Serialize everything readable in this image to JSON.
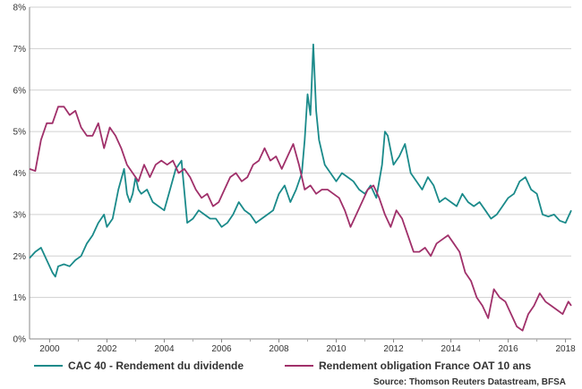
{
  "chart_data": {
    "type": "line",
    "x_range": [
      1999.3,
      2018.2
    ],
    "ylim": [
      0,
      8
    ],
    "y_ticks": [
      0,
      1,
      2,
      3,
      4,
      5,
      6,
      7,
      8
    ],
    "y_tick_labels": [
      "0%",
      "1%",
      "2%",
      "3%",
      "4%",
      "5%",
      "6%",
      "7%",
      "8%"
    ],
    "x_ticks": [
      2000,
      2002,
      2004,
      2006,
      2008,
      2010,
      2012,
      2014,
      2016,
      2018
    ],
    "x_tick_labels": [
      "2000",
      "2002",
      "2004",
      "2006",
      "2008",
      "2010",
      "2012",
      "2014",
      "2016",
      "2018"
    ],
    "grid": true,
    "legend_position": "bottom",
    "series": [
      {
        "name": "CAC 40 - Rendement du dividende",
        "color": "#1a8a8a",
        "x": [
          1999.3,
          1999.5,
          1999.7,
          1999.9,
          2000.1,
          2000.2,
          2000.3,
          2000.5,
          2000.7,
          2000.9,
          2001.1,
          2001.3,
          2001.5,
          2001.7,
          2001.9,
          2002.0,
          2002.2,
          2002.4,
          2002.6,
          2002.7,
          2002.8,
          2002.9,
          2003.0,
          2003.1,
          2003.2,
          2003.4,
          2003.6,
          2003.8,
          2004.0,
          2004.2,
          2004.4,
          2004.6,
          2004.8,
          2005.0,
          2005.2,
          2005.4,
          2005.6,
          2005.8,
          2006.0,
          2006.2,
          2006.4,
          2006.6,
          2006.8,
          2007.0,
          2007.2,
          2007.4,
          2007.6,
          2007.8,
          2008.0,
          2008.2,
          2008.4,
          2008.6,
          2008.8,
          2008.9,
          2009.0,
          2009.1,
          2009.2,
          2009.3,
          2009.4,
          2009.6,
          2009.8,
          2010.0,
          2010.2,
          2010.4,
          2010.6,
          2010.8,
          2011.0,
          2011.2,
          2011.4,
          2011.6,
          2011.7,
          2011.8,
          2012.0,
          2012.2,
          2012.4,
          2012.6,
          2012.8,
          2013.0,
          2013.2,
          2013.4,
          2013.6,
          2013.8,
          2014.0,
          2014.2,
          2014.4,
          2014.6,
          2014.8,
          2015.0,
          2015.2,
          2015.4,
          2015.6,
          2015.8,
          2016.0,
          2016.2,
          2016.4,
          2016.6,
          2016.8,
          2017.0,
          2017.2,
          2017.4,
          2017.6,
          2017.8,
          2018.0,
          2018.2
        ],
        "values": [
          1.95,
          2.1,
          2.2,
          1.9,
          1.6,
          1.5,
          1.75,
          1.8,
          1.75,
          1.9,
          2.0,
          2.3,
          2.5,
          2.8,
          3.0,
          2.7,
          2.9,
          3.6,
          4.1,
          3.5,
          3.3,
          3.5,
          3.9,
          3.6,
          3.5,
          3.6,
          3.3,
          3.2,
          3.1,
          3.6,
          4.1,
          4.3,
          2.8,
          2.9,
          3.1,
          3.0,
          2.9,
          2.9,
          2.7,
          2.8,
          3.0,
          3.3,
          3.1,
          3.0,
          2.8,
          2.9,
          3.0,
          3.1,
          3.5,
          3.7,
          3.3,
          3.6,
          4.0,
          4.8,
          5.9,
          5.4,
          7.1,
          5.5,
          4.8,
          4.2,
          4.0,
          3.8,
          4.0,
          3.9,
          3.8,
          3.6,
          3.5,
          3.7,
          3.4,
          4.2,
          5.0,
          4.9,
          4.2,
          4.4,
          4.7,
          4.0,
          3.8,
          3.6,
          3.9,
          3.7,
          3.3,
          3.4,
          3.3,
          3.2,
          3.5,
          3.3,
          3.2,
          3.3,
          3.1,
          2.9,
          3.0,
          3.2,
          3.4,
          3.5,
          3.8,
          3.9,
          3.6,
          3.5,
          3.0,
          2.95,
          3.0,
          2.85,
          2.8,
          3.1
        ]
      },
      {
        "name": "Rendement obligation France OAT 10 ans",
        "color": "#a0306a",
        "x": [
          1999.3,
          1999.5,
          1999.7,
          1999.9,
          2000.1,
          2000.3,
          2000.5,
          2000.7,
          2000.9,
          2001.1,
          2001.3,
          2001.5,
          2001.7,
          2001.9,
          2002.1,
          2002.3,
          2002.5,
          2002.7,
          2002.9,
          2003.1,
          2003.3,
          2003.5,
          2003.7,
          2003.9,
          2004.1,
          2004.3,
          2004.5,
          2004.7,
          2004.9,
          2005.1,
          2005.3,
          2005.5,
          2005.7,
          2005.9,
          2006.1,
          2006.3,
          2006.5,
          2006.7,
          2006.9,
          2007.1,
          2007.3,
          2007.5,
          2007.7,
          2007.9,
          2008.1,
          2008.3,
          2008.5,
          2008.7,
          2008.9,
          2009.1,
          2009.3,
          2009.5,
          2009.7,
          2009.9,
          2010.1,
          2010.3,
          2010.5,
          2010.7,
          2010.9,
          2011.1,
          2011.3,
          2011.5,
          2011.7,
          2011.9,
          2012.1,
          2012.3,
          2012.5,
          2012.7,
          2012.9,
          2013.1,
          2013.3,
          2013.5,
          2013.7,
          2013.9,
          2014.1,
          2014.3,
          2014.5,
          2014.7,
          2014.9,
          2015.1,
          2015.3,
          2015.5,
          2015.7,
          2015.9,
          2016.1,
          2016.3,
          2016.5,
          2016.7,
          2016.9,
          2017.1,
          2017.3,
          2017.5,
          2017.7,
          2017.9,
          2018.1,
          2018.2
        ],
        "values": [
          4.1,
          4.05,
          4.8,
          5.2,
          5.2,
          5.6,
          5.6,
          5.4,
          5.5,
          5.1,
          4.9,
          4.9,
          5.2,
          4.6,
          5.1,
          4.9,
          4.6,
          4.2,
          4.0,
          3.8,
          4.2,
          3.9,
          4.2,
          4.3,
          4.2,
          4.3,
          4.0,
          4.1,
          3.9,
          3.6,
          3.4,
          3.5,
          3.2,
          3.3,
          3.6,
          3.9,
          4.0,
          3.8,
          3.9,
          4.2,
          4.3,
          4.6,
          4.3,
          4.4,
          4.1,
          4.4,
          4.7,
          4.2,
          3.6,
          3.7,
          3.5,
          3.6,
          3.6,
          3.5,
          3.4,
          3.1,
          2.7,
          3.0,
          3.3,
          3.6,
          3.7,
          3.4,
          3.0,
          2.7,
          3.1,
          2.9,
          2.5,
          2.1,
          2.1,
          2.2,
          2.0,
          2.3,
          2.4,
          2.5,
          2.3,
          2.1,
          1.6,
          1.4,
          1.0,
          0.8,
          0.5,
          1.2,
          1.0,
          0.9,
          0.6,
          0.3,
          0.2,
          0.6,
          0.8,
          1.1,
          0.9,
          0.8,
          0.7,
          0.6,
          0.9,
          0.8
        ]
      }
    ],
    "source": "Source: Thomson Reuters Datastream, BFSA"
  }
}
